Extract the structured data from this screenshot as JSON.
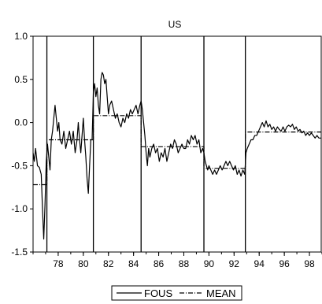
{
  "chart_data": {
    "type": "line",
    "title": "US",
    "xlabel": "",
    "ylabel": "",
    "xlim": [
      1976.0,
      1999.0
    ],
    "ylim": [
      -1.5,
      1.0
    ],
    "x_ticks": [
      {
        "value": 1978,
        "label": "78"
      },
      {
        "value": 1980,
        "label": "80"
      },
      {
        "value": 1982,
        "label": "82"
      },
      {
        "value": 1984,
        "label": "84"
      },
      {
        "value": 1986,
        "label": "86"
      },
      {
        "value": 1988,
        "label": "88"
      },
      {
        "value": 1990,
        "label": "90"
      },
      {
        "value": 1992,
        "label": "92"
      },
      {
        "value": 1994,
        "label": "94"
      },
      {
        "value": 1996,
        "label": "96"
      },
      {
        "value": 1998,
        "label": "98"
      }
    ],
    "y_ticks": [
      {
        "value": 1.0,
        "label": "1.0"
      },
      {
        "value": 0.5,
        "label": "0.5"
      },
      {
        "value": 0.0,
        "label": "0.0"
      },
      {
        "value": -0.5,
        "label": "-0.5"
      },
      {
        "value": -1.0,
        "label": "-1.0"
      },
      {
        "value": -1.5,
        "label": "-1.5"
      }
    ],
    "break_lines": [
      1977.1,
      1980.8,
      1984.6,
      1989.6,
      1992.9
    ],
    "legend": {
      "position": "bottom-center"
    },
    "series": [
      {
        "name": "FOUS",
        "style": "solid",
        "color": "#000000",
        "points": [
          [
            1976.0,
            -0.35
          ],
          [
            1976.1,
            -0.45
          ],
          [
            1976.2,
            -0.3
          ],
          [
            1976.35,
            -0.5
          ],
          [
            1976.5,
            -0.52
          ],
          [
            1976.65,
            -0.6
          ],
          [
            1976.75,
            -1.0
          ],
          [
            1976.85,
            -1.35
          ],
          [
            1976.95,
            -0.95
          ],
          [
            1977.05,
            -0.45
          ],
          [
            1977.15,
            -0.25
          ],
          [
            1977.25,
            -0.4
          ],
          [
            1977.35,
            -0.55
          ],
          [
            1977.45,
            -0.2
          ],
          [
            1977.55,
            -0.1
          ],
          [
            1977.65,
            0.05
          ],
          [
            1977.75,
            0.2
          ],
          [
            1977.85,
            0.05
          ],
          [
            1977.95,
            -0.1
          ],
          [
            1978.05,
            0.0
          ],
          [
            1978.15,
            -0.2
          ],
          [
            1978.3,
            -0.25
          ],
          [
            1978.45,
            -0.1
          ],
          [
            1978.6,
            -0.3
          ],
          [
            1978.75,
            -0.2
          ],
          [
            1978.9,
            -0.1
          ],
          [
            1979.05,
            -0.25
          ],
          [
            1979.2,
            -0.1
          ],
          [
            1979.35,
            -0.35
          ],
          [
            1979.5,
            -0.2
          ],
          [
            1979.6,
            0.0
          ],
          [
            1979.7,
            -0.2
          ],
          [
            1979.8,
            -0.35
          ],
          [
            1979.9,
            -0.15
          ],
          [
            1980.0,
            0.05
          ],
          [
            1980.1,
            -0.2
          ],
          [
            1980.2,
            -0.4
          ],
          [
            1980.3,
            -0.65
          ],
          [
            1980.4,
            -0.82
          ],
          [
            1980.5,
            -0.5
          ],
          [
            1980.6,
            -0.2
          ],
          [
            1980.7,
            -0.2
          ],
          [
            1980.8,
            0.35
          ],
          [
            1980.9,
            0.45
          ],
          [
            1981.0,
            0.3
          ],
          [
            1981.1,
            0.4
          ],
          [
            1981.2,
            0.2
          ],
          [
            1981.3,
            0.1
          ],
          [
            1981.4,
            0.5
          ],
          [
            1981.5,
            0.58
          ],
          [
            1981.6,
            0.55
          ],
          [
            1981.7,
            0.45
          ],
          [
            1981.8,
            0.5
          ],
          [
            1981.9,
            0.3
          ],
          [
            1982.0,
            0.1
          ],
          [
            1982.1,
            0.2
          ],
          [
            1982.25,
            0.25
          ],
          [
            1982.4,
            0.15
          ],
          [
            1982.55,
            0.05
          ],
          [
            1982.7,
            0.1
          ],
          [
            1982.85,
            0.0
          ],
          [
            1983.0,
            -0.05
          ],
          [
            1983.15,
            0.05
          ],
          [
            1983.3,
            0.0
          ],
          [
            1983.45,
            0.1
          ],
          [
            1983.6,
            0.05
          ],
          [
            1983.75,
            0.15
          ],
          [
            1983.9,
            0.1
          ],
          [
            1984.05,
            0.15
          ],
          [
            1984.2,
            0.2
          ],
          [
            1984.35,
            0.1
          ],
          [
            1984.5,
            0.2
          ],
          [
            1984.6,
            0.25
          ],
          [
            1984.7,
            0.15
          ],
          [
            1984.8,
            0.0
          ],
          [
            1984.9,
            -0.15
          ],
          [
            1985.0,
            -0.35
          ],
          [
            1985.1,
            -0.5
          ],
          [
            1985.2,
            -0.3
          ],
          [
            1985.3,
            -0.4
          ],
          [
            1985.45,
            -0.3
          ],
          [
            1985.6,
            -0.25
          ],
          [
            1985.75,
            -0.35
          ],
          [
            1985.9,
            -0.3
          ],
          [
            1986.05,
            -0.45
          ],
          [
            1986.2,
            -0.35
          ],
          [
            1986.35,
            -0.4
          ],
          [
            1986.5,
            -0.3
          ],
          [
            1986.65,
            -0.45
          ],
          [
            1986.8,
            -0.35
          ],
          [
            1986.95,
            -0.25
          ],
          [
            1987.1,
            -0.3
          ],
          [
            1987.25,
            -0.2
          ],
          [
            1987.4,
            -0.25
          ],
          [
            1987.55,
            -0.35
          ],
          [
            1987.7,
            -0.3
          ],
          [
            1987.85,
            -0.25
          ],
          [
            1988.0,
            -0.3
          ],
          [
            1988.15,
            -0.3
          ],
          [
            1988.3,
            -0.2
          ],
          [
            1988.45,
            -0.25
          ],
          [
            1988.6,
            -0.15
          ],
          [
            1988.75,
            -0.2
          ],
          [
            1988.9,
            -0.15
          ],
          [
            1989.05,
            -0.25
          ],
          [
            1989.2,
            -0.2
          ],
          [
            1989.35,
            -0.35
          ],
          [
            1989.5,
            -0.3
          ],
          [
            1989.6,
            -0.35
          ],
          [
            1989.7,
            -0.45
          ],
          [
            1989.8,
            -0.5
          ],
          [
            1989.9,
            -0.55
          ],
          [
            1990.0,
            -0.5
          ],
          [
            1990.15,
            -0.55
          ],
          [
            1990.3,
            -0.6
          ],
          [
            1990.45,
            -0.55
          ],
          [
            1990.6,
            -0.6
          ],
          [
            1990.75,
            -0.55
          ],
          [
            1990.9,
            -0.5
          ],
          [
            1991.05,
            -0.55
          ],
          [
            1991.2,
            -0.5
          ],
          [
            1991.35,
            -0.45
          ],
          [
            1991.5,
            -0.5
          ],
          [
            1991.65,
            -0.45
          ],
          [
            1991.8,
            -0.5
          ],
          [
            1991.95,
            -0.55
          ],
          [
            1992.1,
            -0.5
          ],
          [
            1992.25,
            -0.6
          ],
          [
            1992.4,
            -0.55
          ],
          [
            1992.55,
            -0.62
          ],
          [
            1992.7,
            -0.55
          ],
          [
            1992.85,
            -0.6
          ],
          [
            1992.95,
            -0.35
          ],
          [
            1993.05,
            -0.3
          ],
          [
            1993.2,
            -0.25
          ],
          [
            1993.35,
            -0.2
          ],
          [
            1993.5,
            -0.2
          ],
          [
            1993.65,
            -0.15
          ],
          [
            1993.8,
            -0.15
          ],
          [
            1993.95,
            -0.1
          ],
          [
            1994.1,
            -0.05
          ],
          [
            1994.25,
            0.0
          ],
          [
            1994.4,
            -0.05
          ],
          [
            1994.55,
            0.02
          ],
          [
            1994.7,
            -0.05
          ],
          [
            1994.85,
            -0.02
          ],
          [
            1995.0,
            -0.08
          ],
          [
            1995.15,
            -0.05
          ],
          [
            1995.3,
            -0.1
          ],
          [
            1995.45,
            -0.05
          ],
          [
            1995.6,
            -0.08
          ],
          [
            1995.75,
            -0.1
          ],
          [
            1995.9,
            -0.05
          ],
          [
            1996.05,
            -0.1
          ],
          [
            1996.2,
            -0.05
          ],
          [
            1996.35,
            -0.03
          ],
          [
            1996.5,
            -0.05
          ],
          [
            1996.65,
            -0.02
          ],
          [
            1996.8,
            -0.08
          ],
          [
            1996.95,
            -0.05
          ],
          [
            1997.1,
            -0.1
          ],
          [
            1997.25,
            -0.08
          ],
          [
            1997.4,
            -0.12
          ],
          [
            1997.55,
            -0.1
          ],
          [
            1997.7,
            -0.15
          ],
          [
            1997.85,
            -0.12
          ],
          [
            1998.0,
            -0.15
          ],
          [
            1998.15,
            -0.12
          ],
          [
            1998.3,
            -0.15
          ],
          [
            1998.45,
            -0.18
          ],
          [
            1998.6,
            -0.15
          ],
          [
            1998.75,
            -0.18
          ],
          [
            1998.95,
            -0.18
          ]
        ]
      },
      {
        "name": "MEAN",
        "style": "dash-dot",
        "color": "#000000",
        "points": [
          [
            1976.0,
            -0.72
          ],
          [
            1977.1,
            -0.72
          ],
          [
            1977.1,
            -0.2
          ],
          [
            1980.8,
            -0.2
          ],
          [
            1980.8,
            0.08
          ],
          [
            1984.6,
            0.08
          ],
          [
            1984.6,
            -0.28
          ],
          [
            1989.6,
            -0.28
          ],
          [
            1989.6,
            -0.53
          ],
          [
            1992.9,
            -0.53
          ],
          [
            1992.9,
            -0.11
          ],
          [
            1998.95,
            -0.11
          ]
        ]
      }
    ]
  }
}
